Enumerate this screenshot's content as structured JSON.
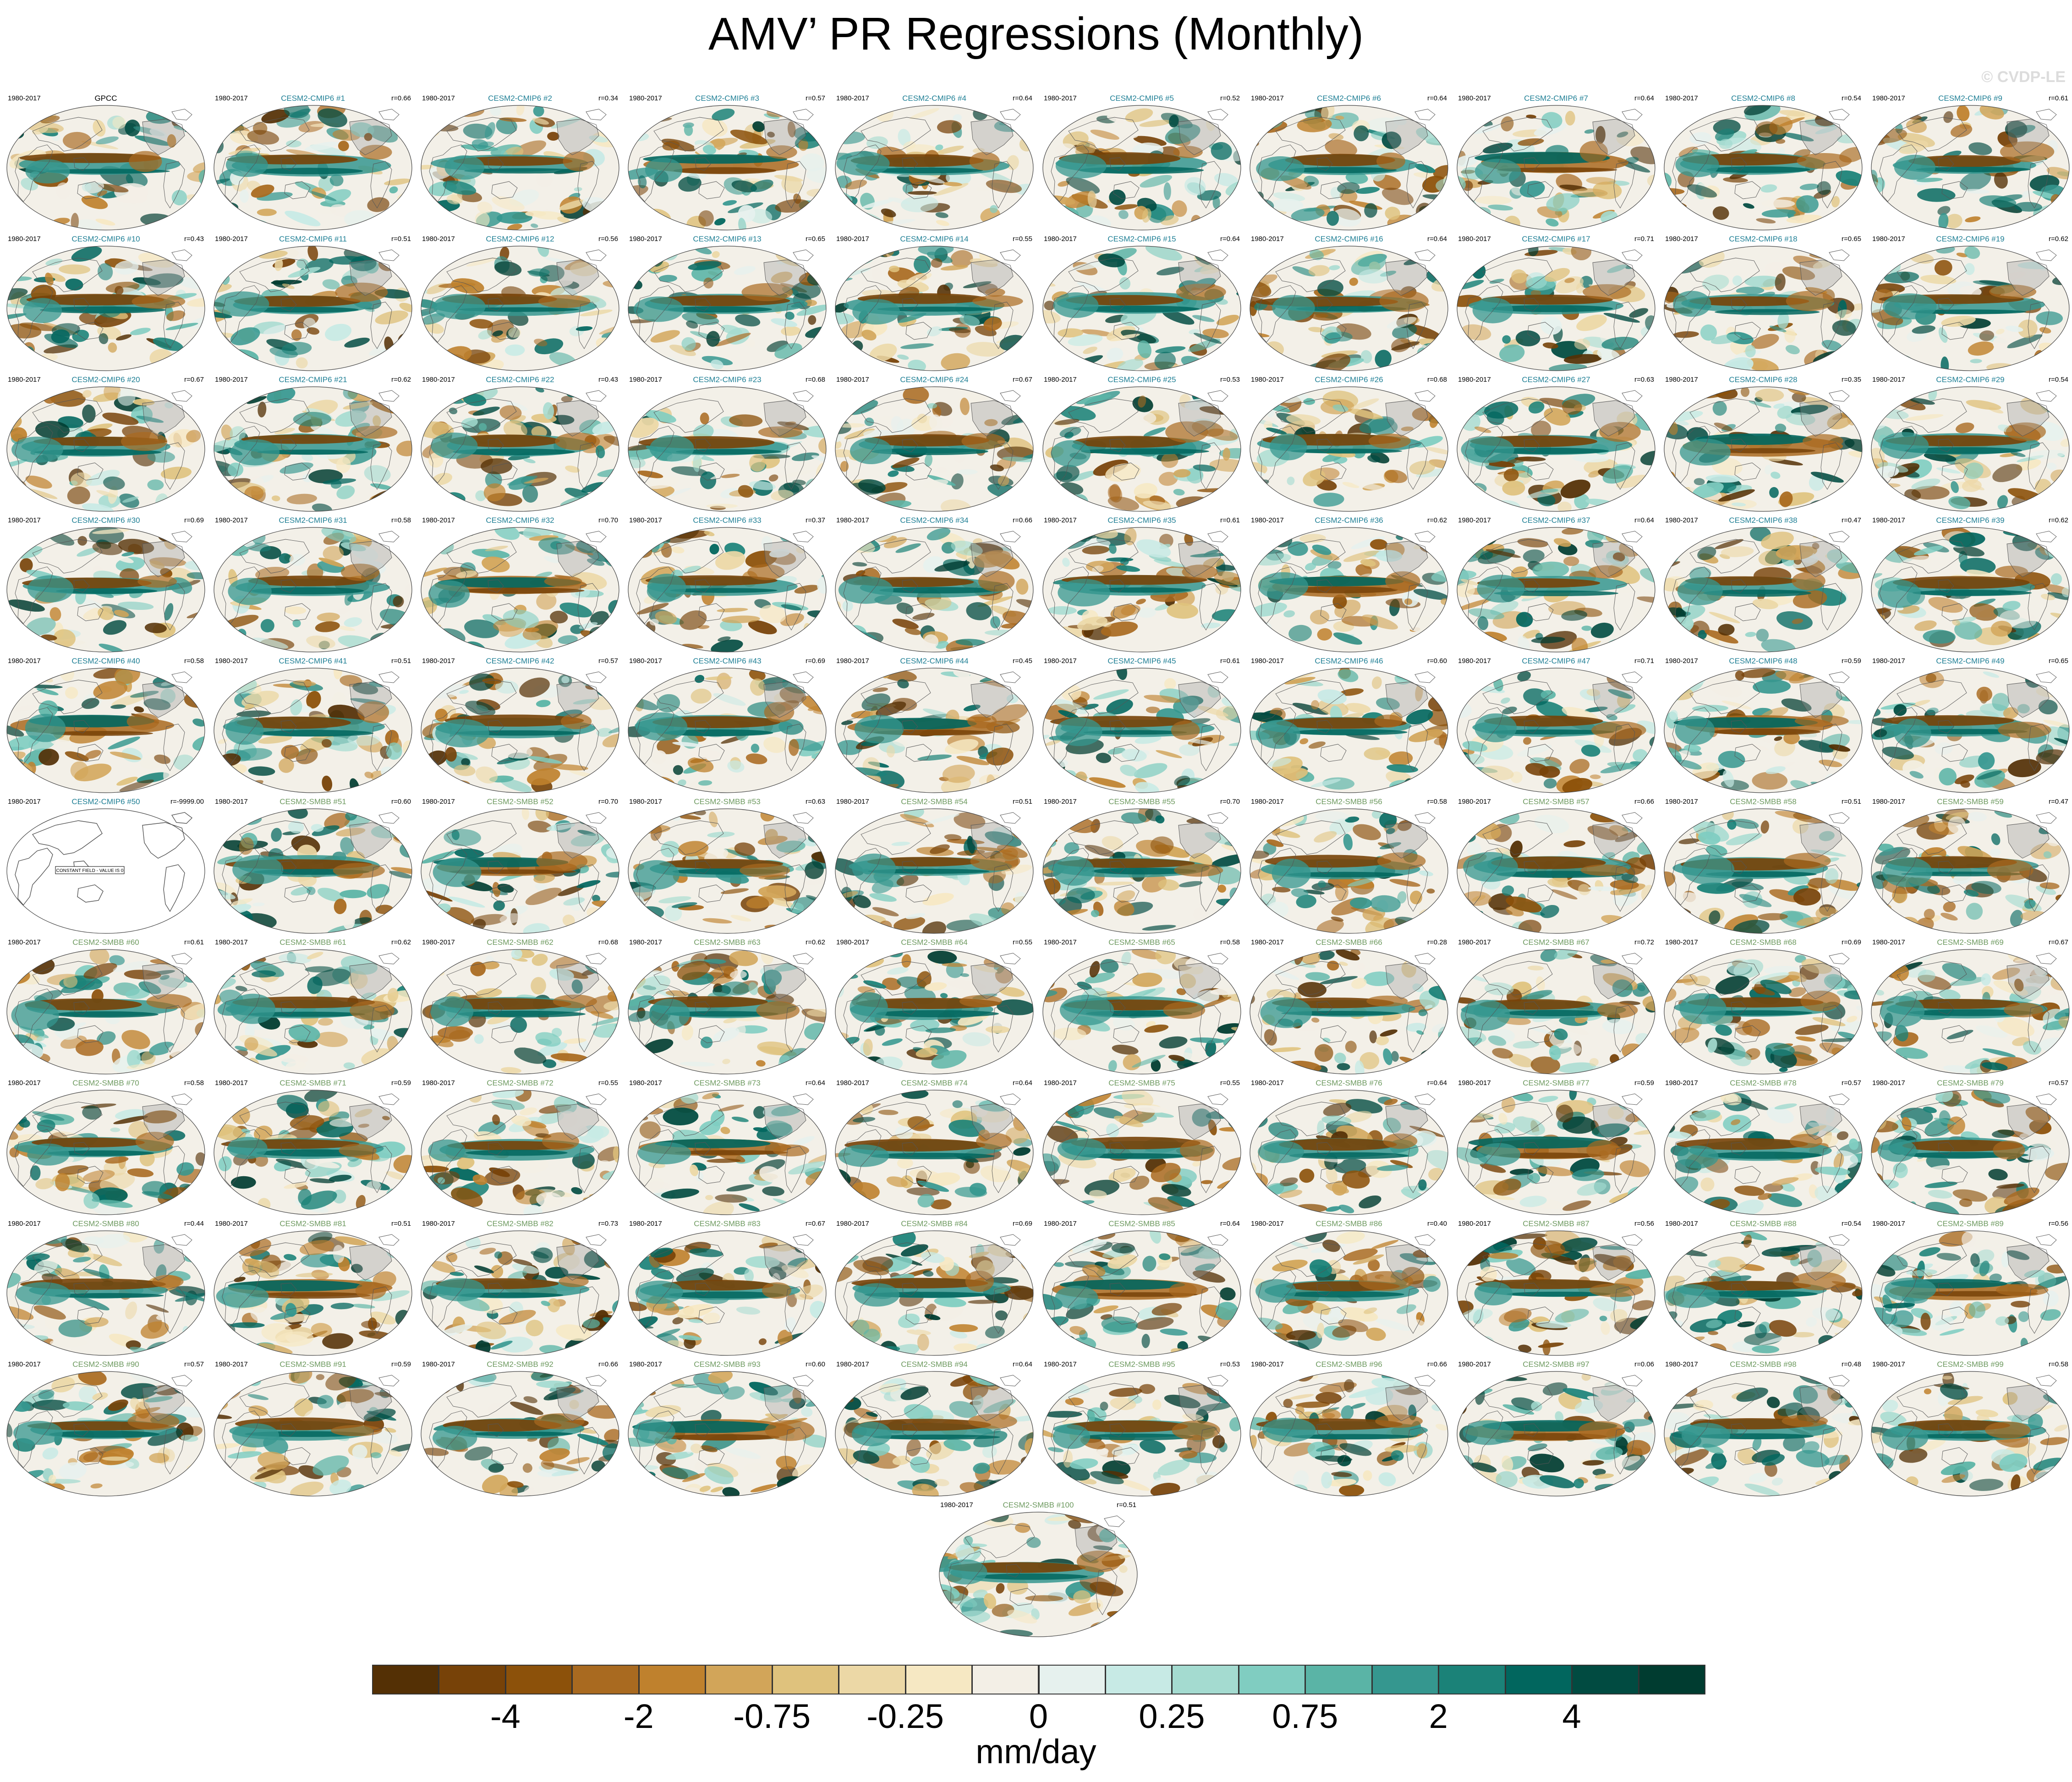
{
  "figure": {
    "title": "AMV’ PR Regressions (Monthly)",
    "watermark": "© CVDP-LE"
  },
  "colors": {
    "cmip6_title": "#1f7f95",
    "smbb_title": "#6e9a60",
    "obs_title": "#000000",
    "coast": "#555555",
    "land_mask": "#9a9a9a",
    "map_background": "#f3f0e8",
    "blank_panel": "#ffffff"
  },
  "chart_data": {
    "type": "heatmap",
    "projection": "Robinson (global, Pacific-centered)",
    "variable": "PR",
    "units": "mm/day",
    "colorbar": {
      "label": "mm/day",
      "tick_labels": [
        "-4",
        "-2",
        "-0.75",
        "-0.25",
        "0",
        "0.25",
        "0.75",
        "2",
        "4"
      ],
      "colors": [
        "#543005",
        "#774208",
        "#8c510a",
        "#a96a20",
        "#bf812d",
        "#d2a559",
        "#dfc27d",
        "#ecd8a6",
        "#f6e8c3",
        "#f3efe6",
        "#e6f1ee",
        "#c7eae5",
        "#a4dbd0",
        "#80cdc1",
        "#5ab4a6",
        "#35978f",
        "#1b8278",
        "#01665e",
        "#014b41",
        "#003c30"
      ]
    },
    "panels": [
      {
        "title": "GPCC",
        "group": "obs",
        "period": "1980-2017",
        "corr": ""
      },
      {
        "title": "CESM2-CMIP6 #1",
        "group": "cmip6",
        "period": "1980-2017",
        "corr": "r=0.66"
      },
      {
        "title": "CESM2-CMIP6 #2",
        "group": "cmip6",
        "period": "1980-2017",
        "corr": "r=0.34"
      },
      {
        "title": "CESM2-CMIP6 #3",
        "group": "cmip6",
        "period": "1980-2017",
        "corr": "r=0.57"
      },
      {
        "title": "CESM2-CMIP6 #4",
        "group": "cmip6",
        "period": "1980-2017",
        "corr": "r=0.64"
      },
      {
        "title": "CESM2-CMIP6 #5",
        "group": "cmip6",
        "period": "1980-2017",
        "corr": "r=0.52"
      },
      {
        "title": "CESM2-CMIP6 #6",
        "group": "cmip6",
        "period": "1980-2017",
        "corr": "r=0.64"
      },
      {
        "title": "CESM2-CMIP6 #7",
        "group": "cmip6",
        "period": "1980-2017",
        "corr": "r=0.64"
      },
      {
        "title": "CESM2-CMIP6 #8",
        "group": "cmip6",
        "period": "1980-2017",
        "corr": "r=0.54"
      },
      {
        "title": "CESM2-CMIP6 #9",
        "group": "cmip6",
        "period": "1980-2017",
        "corr": "r=0.61"
      },
      {
        "title": "CESM2-CMIP6 #10",
        "group": "cmip6",
        "period": "1980-2017",
        "corr": "r=0.43"
      },
      {
        "title": "CESM2-CMIP6 #11",
        "group": "cmip6",
        "period": "1980-2017",
        "corr": "r=0.51"
      },
      {
        "title": "CESM2-CMIP6 #12",
        "group": "cmip6",
        "period": "1980-2017",
        "corr": "r=0.56"
      },
      {
        "title": "CESM2-CMIP6 #13",
        "group": "cmip6",
        "period": "1980-2017",
        "corr": "r=0.65"
      },
      {
        "title": "CESM2-CMIP6 #14",
        "group": "cmip6",
        "period": "1980-2017",
        "corr": "r=0.55"
      },
      {
        "title": "CESM2-CMIP6 #15",
        "group": "cmip6",
        "period": "1980-2017",
        "corr": "r=0.64"
      },
      {
        "title": "CESM2-CMIP6 #16",
        "group": "cmip6",
        "period": "1980-2017",
        "corr": "r=0.64"
      },
      {
        "title": "CESM2-CMIP6 #17",
        "group": "cmip6",
        "period": "1980-2017",
        "corr": "r=0.71"
      },
      {
        "title": "CESM2-CMIP6 #18",
        "group": "cmip6",
        "period": "1980-2017",
        "corr": "r=0.65"
      },
      {
        "title": "CESM2-CMIP6 #19",
        "group": "cmip6",
        "period": "1980-2017",
        "corr": "r=0.62"
      },
      {
        "title": "CESM2-CMIP6 #20",
        "group": "cmip6",
        "period": "1980-2017",
        "corr": "r=0.67"
      },
      {
        "title": "CESM2-CMIP6 #21",
        "group": "cmip6",
        "period": "1980-2017",
        "corr": "r=0.62"
      },
      {
        "title": "CESM2-CMIP6 #22",
        "group": "cmip6",
        "period": "1980-2017",
        "corr": "r=0.43"
      },
      {
        "title": "CESM2-CMIP6 #23",
        "group": "cmip6",
        "period": "1980-2017",
        "corr": "r=0.68"
      },
      {
        "title": "CESM2-CMIP6 #24",
        "group": "cmip6",
        "period": "1980-2017",
        "corr": "r=0.67"
      },
      {
        "title": "CESM2-CMIP6 #25",
        "group": "cmip6",
        "period": "1980-2017",
        "corr": "r=0.53"
      },
      {
        "title": "CESM2-CMIP6 #26",
        "group": "cmip6",
        "period": "1980-2017",
        "corr": "r=0.68"
      },
      {
        "title": "CESM2-CMIP6 #27",
        "group": "cmip6",
        "period": "1980-2017",
        "corr": "r=0.63"
      },
      {
        "title": "CESM2-CMIP6 #28",
        "group": "cmip6",
        "period": "1980-2017",
        "corr": "r=0.35"
      },
      {
        "title": "CESM2-CMIP6 #29",
        "group": "cmip6",
        "period": "1980-2017",
        "corr": "r=0.54"
      },
      {
        "title": "CESM2-CMIP6 #30",
        "group": "cmip6",
        "period": "1980-2017",
        "corr": "r=0.69"
      },
      {
        "title": "CESM2-CMIP6 #31",
        "group": "cmip6",
        "period": "1980-2017",
        "corr": "r=0.58"
      },
      {
        "title": "CESM2-CMIP6 #32",
        "group": "cmip6",
        "period": "1980-2017",
        "corr": "r=0.70"
      },
      {
        "title": "CESM2-CMIP6 #33",
        "group": "cmip6",
        "period": "1980-2017",
        "corr": "r=0.37"
      },
      {
        "title": "CESM2-CMIP6 #34",
        "group": "cmip6",
        "period": "1980-2017",
        "corr": "r=0.66"
      },
      {
        "title": "CESM2-CMIP6 #35",
        "group": "cmip6",
        "period": "1980-2017",
        "corr": "r=0.61"
      },
      {
        "title": "CESM2-CMIP6 #36",
        "group": "cmip6",
        "period": "1980-2017",
        "corr": "r=0.62"
      },
      {
        "title": "CESM2-CMIP6 #37",
        "group": "cmip6",
        "period": "1980-2017",
        "corr": "r=0.64"
      },
      {
        "title": "CESM2-CMIP6 #38",
        "group": "cmip6",
        "period": "1980-2017",
        "corr": "r=0.47"
      },
      {
        "title": "CESM2-CMIP6 #39",
        "group": "cmip6",
        "period": "1980-2017",
        "corr": "r=0.62"
      },
      {
        "title": "CESM2-CMIP6 #40",
        "group": "cmip6",
        "period": "1980-2017",
        "corr": "r=0.58"
      },
      {
        "title": "CESM2-CMIP6 #41",
        "group": "cmip6",
        "period": "1980-2017",
        "corr": "r=0.51"
      },
      {
        "title": "CESM2-CMIP6 #42",
        "group": "cmip6",
        "period": "1980-2017",
        "corr": "r=0.57"
      },
      {
        "title": "CESM2-CMIP6 #43",
        "group": "cmip6",
        "period": "1980-2017",
        "corr": "r=0.69"
      },
      {
        "title": "CESM2-CMIP6 #44",
        "group": "cmip6",
        "period": "1980-2017",
        "corr": "r=0.45"
      },
      {
        "title": "CESM2-CMIP6 #45",
        "group": "cmip6",
        "period": "1980-2017",
        "corr": "r=0.61"
      },
      {
        "title": "CESM2-CMIP6 #46",
        "group": "cmip6",
        "period": "1980-2017",
        "corr": "r=0.60"
      },
      {
        "title": "CESM2-CMIP6 #47",
        "group": "cmip6",
        "period": "1980-2017",
        "corr": "r=0.71"
      },
      {
        "title": "CESM2-CMIP6 #48",
        "group": "cmip6",
        "period": "1980-2017",
        "corr": "r=0.59"
      },
      {
        "title": "CESM2-CMIP6 #49",
        "group": "cmip6",
        "period": "1980-2017",
        "corr": "r=0.65"
      },
      {
        "title": "CESM2-CMIP6 #50",
        "group": "cmip6",
        "period": "1980-2017",
        "corr": "r=-9999.00",
        "constant_field": "CONSTANT FIELD - VALUE IS 0"
      },
      {
        "title": "CESM2-SMBB #51",
        "group": "smbb",
        "period": "1980-2017",
        "corr": "r=0.60"
      },
      {
        "title": "CESM2-SMBB #52",
        "group": "smbb",
        "period": "1980-2017",
        "corr": "r=0.70"
      },
      {
        "title": "CESM2-SMBB #53",
        "group": "smbb",
        "period": "1980-2017",
        "corr": "r=0.63"
      },
      {
        "title": "CESM2-SMBB #54",
        "group": "smbb",
        "period": "1980-2017",
        "corr": "r=0.51"
      },
      {
        "title": "CESM2-SMBB #55",
        "group": "smbb",
        "period": "1980-2017",
        "corr": "r=0.70"
      },
      {
        "title": "CESM2-SMBB #56",
        "group": "smbb",
        "period": "1980-2017",
        "corr": "r=0.58"
      },
      {
        "title": "CESM2-SMBB #57",
        "group": "smbb",
        "period": "1980-2017",
        "corr": "r=0.66"
      },
      {
        "title": "CESM2-SMBB #58",
        "group": "smbb",
        "period": "1980-2017",
        "corr": "r=0.51"
      },
      {
        "title": "CESM2-SMBB #59",
        "group": "smbb",
        "period": "1980-2017",
        "corr": "r=0.47"
      },
      {
        "title": "CESM2-SMBB #60",
        "group": "smbb",
        "period": "1980-2017",
        "corr": "r=0.61"
      },
      {
        "title": "CESM2-SMBB #61",
        "group": "smbb",
        "period": "1980-2017",
        "corr": "r=0.62"
      },
      {
        "title": "CESM2-SMBB #62",
        "group": "smbb",
        "period": "1980-2017",
        "corr": "r=0.68"
      },
      {
        "title": "CESM2-SMBB #63",
        "group": "smbb",
        "period": "1980-2017",
        "corr": "r=0.62"
      },
      {
        "title": "CESM2-SMBB #64",
        "group": "smbb",
        "period": "1980-2017",
        "corr": "r=0.55"
      },
      {
        "title": "CESM2-SMBB #65",
        "group": "smbb",
        "period": "1980-2017",
        "corr": "r=0.58"
      },
      {
        "title": "CESM2-SMBB #66",
        "group": "smbb",
        "period": "1980-2017",
        "corr": "r=0.28"
      },
      {
        "title": "CESM2-SMBB #67",
        "group": "smbb",
        "period": "1980-2017",
        "corr": "r=0.72"
      },
      {
        "title": "CESM2-SMBB #68",
        "group": "smbb",
        "period": "1980-2017",
        "corr": "r=0.69"
      },
      {
        "title": "CESM2-SMBB #69",
        "group": "smbb",
        "period": "1980-2017",
        "corr": "r=0.67"
      },
      {
        "title": "CESM2-SMBB #70",
        "group": "smbb",
        "period": "1980-2017",
        "corr": "r=0.58"
      },
      {
        "title": "CESM2-SMBB #71",
        "group": "smbb",
        "period": "1980-2017",
        "corr": "r=0.59"
      },
      {
        "title": "CESM2-SMBB #72",
        "group": "smbb",
        "period": "1980-2017",
        "corr": "r=0.55"
      },
      {
        "title": "CESM2-SMBB #73",
        "group": "smbb",
        "period": "1980-2017",
        "corr": "r=0.64"
      },
      {
        "title": "CESM2-SMBB #74",
        "group": "smbb",
        "period": "1980-2017",
        "corr": "r=0.64"
      },
      {
        "title": "CESM2-SMBB #75",
        "group": "smbb",
        "period": "1980-2017",
        "corr": "r=0.55"
      },
      {
        "title": "CESM2-SMBB #76",
        "group": "smbb",
        "period": "1980-2017",
        "corr": "r=0.64"
      },
      {
        "title": "CESM2-SMBB #77",
        "group": "smbb",
        "period": "1980-2017",
        "corr": "r=0.59"
      },
      {
        "title": "CESM2-SMBB #78",
        "group": "smbb",
        "period": "1980-2017",
        "corr": "r=0.57"
      },
      {
        "title": "CESM2-SMBB #79",
        "group": "smbb",
        "period": "1980-2017",
        "corr": "r=0.57"
      },
      {
        "title": "CESM2-SMBB #80",
        "group": "smbb",
        "period": "1980-2017",
        "corr": "r=0.44"
      },
      {
        "title": "CESM2-SMBB #81",
        "group": "smbb",
        "period": "1980-2017",
        "corr": "r=0.51"
      },
      {
        "title": "CESM2-SMBB #82",
        "group": "smbb",
        "period": "1980-2017",
        "corr": "r=0.73"
      },
      {
        "title": "CESM2-SMBB #83",
        "group": "smbb",
        "period": "1980-2017",
        "corr": "r=0.67"
      },
      {
        "title": "CESM2-SMBB #84",
        "group": "smbb",
        "period": "1980-2017",
        "corr": "r=0.69"
      },
      {
        "title": "CESM2-SMBB #85",
        "group": "smbb",
        "period": "1980-2017",
        "corr": "r=0.64"
      },
      {
        "title": "CESM2-SMBB #86",
        "group": "smbb",
        "period": "1980-2017",
        "corr": "r=0.40"
      },
      {
        "title": "CESM2-SMBB #87",
        "group": "smbb",
        "period": "1980-2017",
        "corr": "r=0.56"
      },
      {
        "title": "CESM2-SMBB #88",
        "group": "smbb",
        "period": "1980-2017",
        "corr": "r=0.54"
      },
      {
        "title": "CESM2-SMBB #89",
        "group": "smbb",
        "period": "1980-2017",
        "corr": "r=0.56"
      },
      {
        "title": "CESM2-SMBB #90",
        "group": "smbb",
        "period": "1980-2017",
        "corr": "r=0.57"
      },
      {
        "title": "CESM2-SMBB #91",
        "group": "smbb",
        "period": "1980-2017",
        "corr": "r=0.59"
      },
      {
        "title": "CESM2-SMBB #92",
        "group": "smbb",
        "period": "1980-2017",
        "corr": "r=0.66"
      },
      {
        "title": "CESM2-SMBB #93",
        "group": "smbb",
        "period": "1980-2017",
        "corr": "r=0.60"
      },
      {
        "title": "CESM2-SMBB #94",
        "group": "smbb",
        "period": "1980-2017",
        "corr": "r=0.64"
      },
      {
        "title": "CESM2-SMBB #95",
        "group": "smbb",
        "period": "1980-2017",
        "corr": "r=0.53"
      },
      {
        "title": "CESM2-SMBB #96",
        "group": "smbb",
        "period": "1980-2017",
        "corr": "r=0.66"
      },
      {
        "title": "CESM2-SMBB #97",
        "group": "smbb",
        "period": "1980-2017",
        "corr": "r=0.06"
      },
      {
        "title": "CESM2-SMBB #98",
        "group": "smbb",
        "period": "1980-2017",
        "corr": "r=0.48"
      },
      {
        "title": "CESM2-SMBB #99",
        "group": "smbb",
        "period": "1980-2017",
        "corr": "r=0.58"
      },
      {
        "title": "CESM2-SMBB #100",
        "group": "smbb",
        "period": "1980-2017",
        "corr": "r=0.51"
      }
    ]
  }
}
